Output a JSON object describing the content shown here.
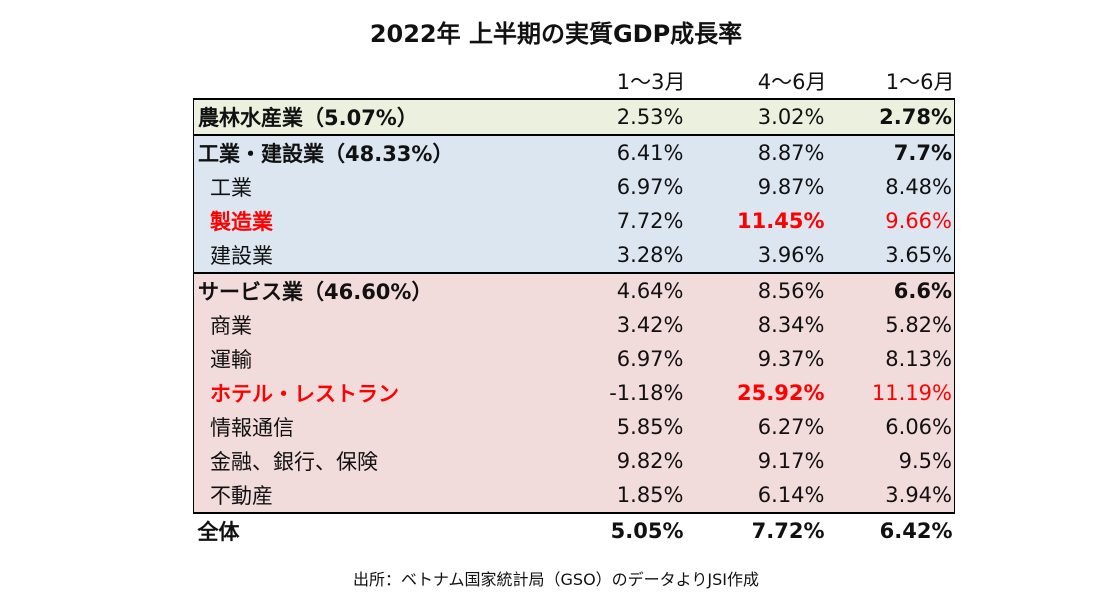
{
  "chart_data": {
    "type": "table",
    "title": "2022年 上半期の実質GDP成長率",
    "columns": [
      "1～3月",
      "4～6月",
      "1～6月"
    ],
    "rows": [
      {
        "label": "農林水産業（5.07%）",
        "values": [
          "2.53%",
          "3.02%",
          "2.78%"
        ],
        "group": "agri",
        "level": 0
      },
      {
        "label": "工業・建設業（48.33%）",
        "values": [
          "6.41%",
          "8.87%",
          "7.7%"
        ],
        "group": "ind",
        "level": 0
      },
      {
        "label": "工業",
        "values": [
          "6.97%",
          "9.87%",
          "8.48%"
        ],
        "group": "ind",
        "level": 1
      },
      {
        "label": "製造業",
        "values": [
          "7.72%",
          "11.45%",
          "9.66%"
        ],
        "group": "ind",
        "level": 1,
        "highlight": true
      },
      {
        "label": "建設業",
        "values": [
          "3.28%",
          "3.96%",
          "3.65%"
        ],
        "group": "ind",
        "level": 1
      },
      {
        "label": "サービス業（46.60%）",
        "values": [
          "4.64%",
          "8.56%",
          "6.6%"
        ],
        "group": "svc",
        "level": 0
      },
      {
        "label": "商業",
        "values": [
          "3.42%",
          "8.34%",
          "5.82%"
        ],
        "group": "svc",
        "level": 1
      },
      {
        "label": "運輸",
        "values": [
          "6.97%",
          "9.37%",
          "8.13%"
        ],
        "group": "svc",
        "level": 1
      },
      {
        "label": "ホテル・レストラン",
        "values": [
          "-1.18%",
          "25.92%",
          "11.19%"
        ],
        "group": "svc",
        "level": 1,
        "highlight": true
      },
      {
        "label": "情報通信",
        "values": [
          "5.85%",
          "6.27%",
          "6.06%"
        ],
        "group": "svc",
        "level": 1
      },
      {
        "label": "金融、銀行、保険",
        "values": [
          "9.82%",
          "9.17%",
          "9.5%"
        ],
        "group": "svc",
        "level": 1
      },
      {
        "label": "不動産",
        "values": [
          "1.85%",
          "6.14%",
          "3.94%"
        ],
        "group": "svc",
        "level": 1
      },
      {
        "label": "全体",
        "values": [
          "5.05%",
          "7.72%",
          "6.42%"
        ],
        "group": "total",
        "level": 0
      }
    ],
    "source": "出所：ベトナム国家統計局（GSO）のデータよりJSI作成",
    "colors": {
      "agri": "#ebf1de",
      "ind": "#dce6f1",
      "svc": "#f2dcdb",
      "highlight": "#ff0000"
    }
  }
}
